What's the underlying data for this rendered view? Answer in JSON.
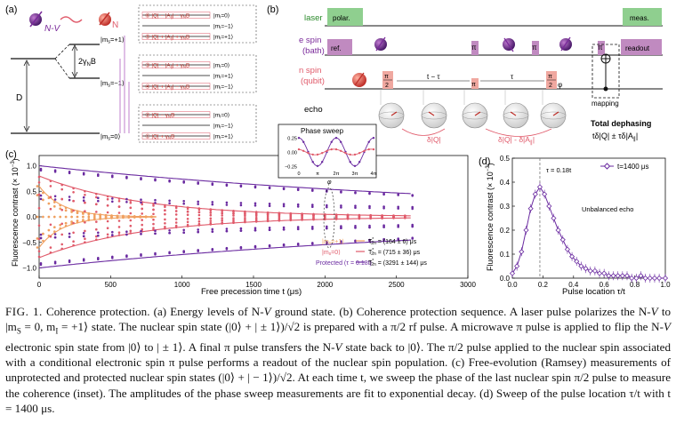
{
  "panels": {
    "a": {
      "label": "(a)",
      "nv_label": "N-V",
      "n_label": "N",
      "splitting": "2γ",
      "splitting_sub": "N",
      "splitting_b": "B",
      "d_label": "D",
      "levels": [
        {
          "name": "|m",
          "sub": "s",
          "tail": "=+1⟩"
        },
        {
          "name": "|m",
          "sub": "s",
          "tail": "=−1⟩"
        },
        {
          "name": "|m",
          "sub": "s",
          "tail": "=0⟩"
        }
      ],
      "boxes": [
        {
          "lines": [
            {
              "num": "⑥",
              "expr": "|Q| − |A",
              "sub": "∥",
              "tail": "| − γ",
              "sub2": "N",
              "tail2": "B",
              "m": "|m",
              "msub": "I",
              "mval": "=0⟩"
            },
            {
              "num": "",
              "expr": "",
              "m": "|m",
              "msub": "I",
              "mval": "=−1⟩"
            },
            {
              "num": "⑤",
              "expr": "|Q| + |A",
              "sub": "∥",
              "tail": "| + γ",
              "sub2": "N",
              "tail2": "B",
              "m": "|m",
              "msub": "I",
              "mval": "=+1⟩"
            }
          ]
        },
        {
          "lines": [
            {
              "num": "③",
              "expr": "|Q| − |A",
              "sub": "∥",
              "tail": "| + γ",
              "sub2": "N",
              "tail2": "B",
              "m": "|m",
              "msub": "I",
              "mval": "=0⟩"
            },
            {
              "num": "",
              "expr": "",
              "m": "|m",
              "msub": "I",
              "mval": "=+1⟩"
            },
            {
              "num": "④",
              "expr": "|Q| + |A",
              "sub": "∥",
              "tail": "| − γ",
              "sub2": "N",
              "tail2": "B",
              "m": "|m",
              "msub": "I",
              "mval": "=−1⟩"
            }
          ]
        },
        {
          "lines": [
            {
              "num": "②",
              "expr": "|Q| − γ",
              "sub": "N",
              "tail": "B",
              "m": "|m",
              "msub": "I",
              "mval": "=0⟩"
            },
            {
              "num": "",
              "expr": "",
              "m": "|m",
              "msub": "I",
              "mval": "=−1⟩"
            },
            {
              "num": "①",
              "expr": "|Q| + γ",
              "sub": "N",
              "tail": "B",
              "m": "|m",
              "msub": "I",
              "mval": "=+1⟩"
            }
          ]
        }
      ]
    },
    "b": {
      "label": "(b)",
      "rows": [
        "laser",
        "e spin",
        "(bath)",
        "n spin",
        "(qubit)",
        "echo"
      ],
      "polar": "polar.",
      "meas": "meas.",
      "ref": "ref.",
      "readout": "readout",
      "pi": "π",
      "pi2_top": "π",
      "pi2_bot": "2",
      "phi": "φ",
      "t_tau": "t − τ",
      "tau": "τ",
      "mapping": "mapping",
      "dq": "δ|Q|",
      "dq2": "δ|Q| - δ|A",
      "dq2_sub": "∥",
      "dq2_tail": "|",
      "total_title": "Total dephasing",
      "total_expr": "tδ|Q| ± τδ|A",
      "total_sub": "∥",
      "total_tail": "|"
    },
    "c": {
      "label": "(c)",
      "ylabel": "Fluorescence contrast (× 10",
      "ylabel_sup": "−3",
      "ylabel_tail": ")",
      "xlabel": "Free precession time t (μs)",
      "xticks": [
        "0",
        "500",
        "1000",
        "1500",
        "2000",
        "2500",
        "3000"
      ],
      "yticks": [
        "−1.0",
        "−0.5",
        "0.0",
        "0.5",
        "1.0"
      ],
      "legend": [
        {
          "name": "|m",
          "sub": "s",
          "tail": "=+1⟩",
          "t2": "T",
          "t2sup": "*",
          "t2sub": "2n",
          "val": " = (164 ± 6) μs",
          "color": "#f0a060"
        },
        {
          "name": "|m",
          "sub": "s",
          "tail": "=0⟩",
          "t2": "T",
          "t2sup": "*",
          "t2sub": "2n",
          "val": " = (715 ± 36) μs",
          "color": "#e05a6a"
        },
        {
          "name": "Protected (τ = 0.18t)",
          "sub": "",
          "tail": "",
          "t2": "T",
          "t2sup": "*",
          "t2sub": "2n",
          "val": " = (3291 ± 144) μs",
          "color": "#6a2aa0"
        }
      ],
      "inset": {
        "title": "Phase sweep",
        "yticks": [
          "0.25",
          "0.00",
          "−0.25"
        ],
        "xticks": [
          "0",
          "π",
          "2π",
          "3π",
          "4π"
        ],
        "xlabel": "φ"
      }
    },
    "d": {
      "label": "(d)",
      "ylabel": "Fluorescence contrast (× 10",
      "ylabel_sup": "−3",
      "ylabel_tail": ")",
      "xlabel": "Pulse location τ/t",
      "legend": "t=1400 μs",
      "tau_note": "τ = 0.18t",
      "unbalanced": "Unbalanced echo",
      "xticks": [
        "0.0",
        "0.2",
        "0.4",
        "0.6",
        "0.8",
        "1.0"
      ],
      "yticks": [
        "0.0",
        "0.1",
        "0.2",
        "0.3",
        "0.4",
        "0.5"
      ]
    }
  },
  "colors": {
    "orange": "#f0a060",
    "red": "#e05a6a",
    "purple": "#6a2aa0",
    "laser_green": "#8fcf8f",
    "espin": "#b07ab0",
    "nspin": "#f0a8a0"
  },
  "caption": {
    "fig": "FIG. 1.",
    "text1": " Coherence protection. (a) Energy levels of N-",
    "v": "V",
    "text2": " ground state. (b) Coherence protection sequence. A laser pulse polarizes the N-",
    "text3": " to |m",
    "text4": " = 0, m",
    "text5": " = +1⟩ state. The nuclear spin state (|0⟩ + | ± 1⟩)/√2 is prepared with a π/2 rf pulse. A microwave π pulse is applied to flip the N-",
    "text6": " electronic spin state from |0⟩ to | ± 1⟩. A final π pulse transfers the N-",
    "text7": " state back to |0⟩. The π/2 pulse applied to the nuclear spin associated with a conditional electronic spin π pulse performs a readout of the nuclear spin population. (c) Free-evolution (Ramsey) measurements of unprotected and protected nuclear spin states (|0⟩ + | − 1⟩)/√2. At each time t, we sweep the phase of the last nuclear spin π/2 pulse to measure the coherence (inset). The amplitudes of the phase sweep measurements are fit to exponential decay. (d) Sweep of the pulse location τ/t with t = 1400 μs.",
    "sub_s": "S",
    "sub_i": "I"
  },
  "chart_data": [
    {
      "type": "scatter",
      "panel": "c",
      "title": "",
      "xlabel": "Free precession time t (μs)",
      "ylabel": "Fluorescence contrast (× 10^−3)",
      "xlim": [
        0,
        3000
      ],
      "ylim": [
        -1.2,
        1.2
      ],
      "series": [
        {
          "name": "|ms=+1⟩",
          "T2": 164,
          "amp0": 0.6
        },
        {
          "name": "|ms=0⟩",
          "T2": 715,
          "amp0": 0.8
        },
        {
          "name": "Protected (τ = 0.18t)",
          "T2": 3291,
          "amp0": 1.0
        }
      ]
    },
    {
      "type": "line",
      "panel": "d",
      "xlabel": "Pulse location τ/t",
      "ylabel": "Fluorescence contrast (× 10^−3)",
      "xlim": [
        0,
        1
      ],
      "ylim": [
        0,
        0.5
      ],
      "series": [
        {
          "name": "t=1400 μs",
          "x": [
            0.0,
            0.03,
            0.06,
            0.09,
            0.12,
            0.15,
            0.18,
            0.21,
            0.24,
            0.27,
            0.3,
            0.33,
            0.36,
            0.39,
            0.42,
            0.45,
            0.48,
            0.51,
            0.54,
            0.57,
            0.6,
            0.63,
            0.66,
            0.69,
            0.72,
            0.75,
            0.78,
            0.81,
            0.84,
            0.87,
            0.9,
            0.93,
            0.96,
            1.0
          ],
          "y": [
            0.02,
            0.05,
            0.11,
            0.2,
            0.29,
            0.35,
            0.38,
            0.35,
            0.3,
            0.25,
            0.2,
            0.16,
            0.12,
            0.09,
            0.07,
            0.05,
            0.04,
            0.03,
            0.03,
            0.02,
            0.02,
            0.01,
            0.01,
            0.01,
            0.01,
            0.01,
            0.0,
            0.0,
            0.01,
            0.0,
            0.0,
            0.0,
            0.0,
            0.0
          ]
        }
      ]
    },
    {
      "type": "scatter",
      "panel": "c-inset",
      "title": "Phase sweep",
      "xlabel": "φ",
      "xlim": [
        0,
        12.57
      ],
      "ylim": [
        -0.3,
        0.3
      ]
    }
  ]
}
